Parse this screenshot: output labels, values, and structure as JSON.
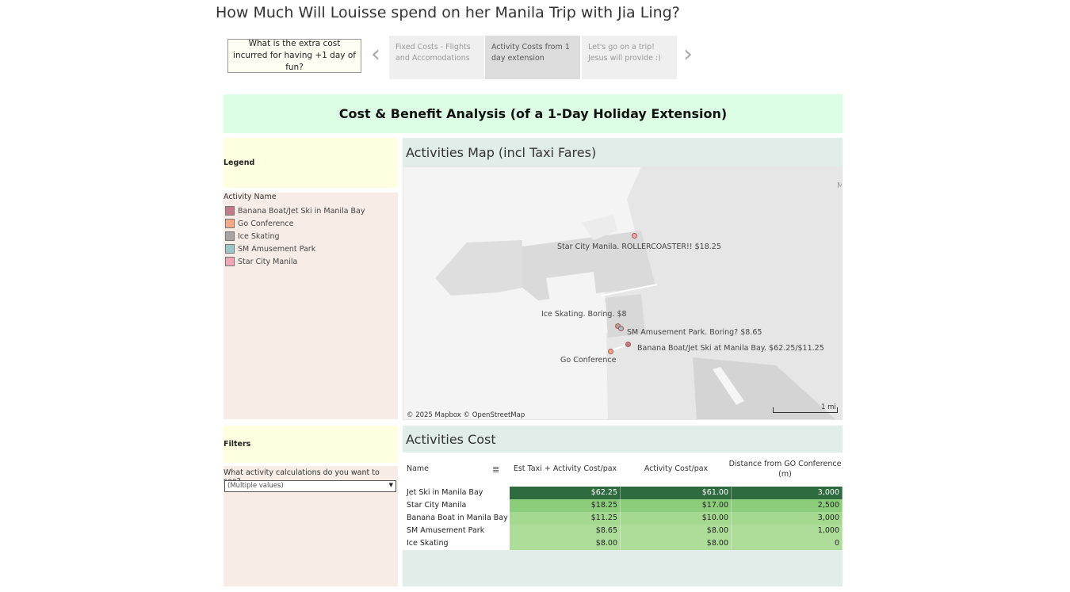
{
  "page": {
    "title": "How Much Will Louisse spend on her Manila Trip with Jia Ling?"
  },
  "story": {
    "caption": "What is the extra cost incurred for having +1 day of fun?",
    "tabs": [
      {
        "label": "Fixed Costs - Flights and Accomodations",
        "selected": false
      },
      {
        "label": "Activity Costs from 1 day extension",
        "selected": true
      },
      {
        "label": "Let's go on a trip! Jesus will provide :)",
        "selected": false
      }
    ]
  },
  "banner": {
    "title": "Cost & Benefit Analysis (of a 1-Day Holiday Extension)"
  },
  "legend": {
    "header": "Legend",
    "title": "Activity Name",
    "items": [
      {
        "label": "Banana Boat/Jet Ski in Manila Bay",
        "color": "#c27a8a"
      },
      {
        "label": "Go Conference",
        "color": "#f4a989"
      },
      {
        "label": "Ice Skating",
        "color": "#a9a3a3"
      },
      {
        "label": "SM Amusement Park",
        "color": "#9bc8c6"
      },
      {
        "label": "Star City Manila",
        "color": "#f2a5b5"
      }
    ]
  },
  "filters": {
    "header": "Filters",
    "label": "What activity calculations do you want to see?",
    "value": "(Multiple values)"
  },
  "map": {
    "title": "Activities Map (incl Taxi Fares)",
    "labels": {
      "star_city": "Star City Manila. ROLLERCOASTER!! $18.25",
      "ice_skating": "Ice Skating. Boring. $8",
      "sm_park": "SM Amusement Park. Boring? $8.65",
      "banana": "Banana Boat/Jet Ski at Manila Bay. $62.25/$11.25",
      "go_conf": "Go Conference"
    },
    "edge_label": "M",
    "attribution": "© 2025 Mapbox  © OpenStreetMap",
    "scale": "1 mi"
  },
  "cost_table": {
    "title": "Activities Cost",
    "columns": [
      "Name",
      "Est Taxi + Activity Cost/pax",
      "Activity Cost/pax",
      "Distance from GO Conference (m)"
    ],
    "rows": [
      {
        "name": "Jet Ski in Manila Bay",
        "total": "$62.25",
        "activity": "$61.00",
        "distance": "3,000",
        "shade": "#2e6b3f",
        "text": "#ffffff"
      },
      {
        "name": "Star City Manila",
        "total": "$18.25",
        "activity": "$17.00",
        "distance": "2,500",
        "shade": "#8bcd7a",
        "text": "#222222"
      },
      {
        "name": "Banana Boat in Manila Bay",
        "total": "$11.25",
        "activity": "$10.00",
        "distance": "3,000",
        "shade": "#a4d98f",
        "text": "#222222"
      },
      {
        "name": "SM Amusement Park",
        "total": "$8.65",
        "activity": "$8.00",
        "distance": "1,000",
        "shade": "#aedd9a",
        "text": "#222222"
      },
      {
        "name": "Ice Skating",
        "total": "$8.00",
        "activity": "$8.00",
        "distance": "0",
        "shade": "#aedd9a",
        "text": "#222222"
      }
    ]
  }
}
